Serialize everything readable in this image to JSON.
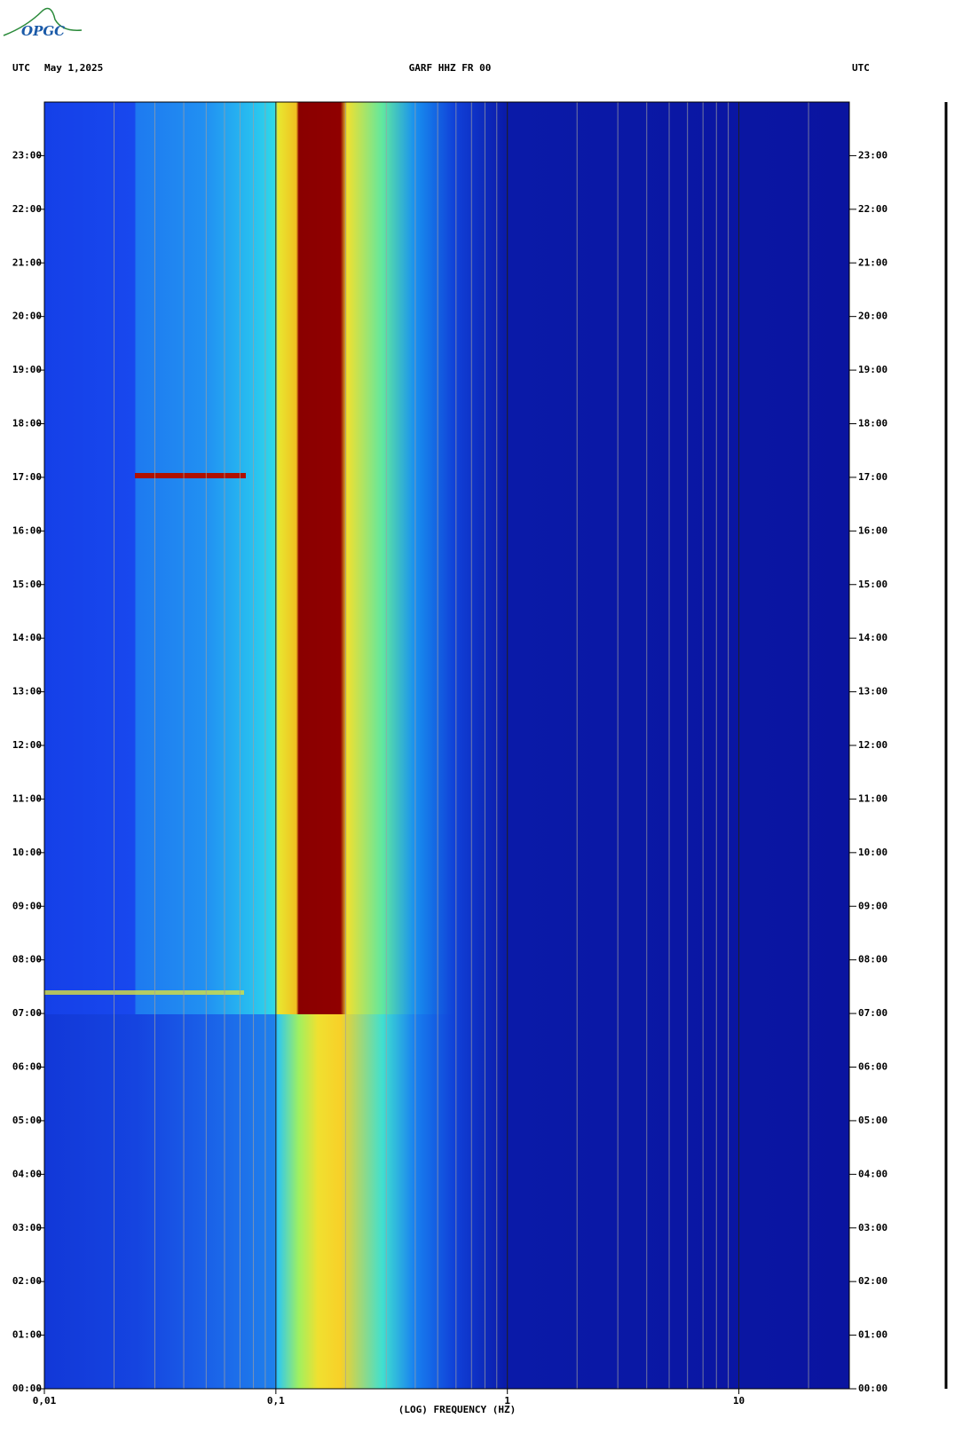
{
  "logo": "OPGC",
  "chart_data": {
    "type": "spectrogram",
    "title": "GARF HHZ FR 00",
    "time_zone": "UTC",
    "date": "May 1,2025",
    "xlabel": "(LOG) FREQUENCY (HZ)",
    "xscale": "log",
    "x_minor_grid": true,
    "xlim": [
      0.01,
      30
    ],
    "xticks": [
      {
        "value": 0.01,
        "label": "0,01"
      },
      {
        "value": 0.1,
        "label": "0,1"
      },
      1,
      10
    ],
    "ylim": [
      0,
      24
    ],
    "yticks": [
      {
        "value": 0,
        "label": "00:00"
      },
      {
        "value": 1,
        "label": "01:00"
      },
      {
        "value": 2,
        "label": "02:00"
      },
      {
        "value": 3,
        "label": "03:00"
      },
      {
        "value": 4,
        "label": "04:00"
      },
      {
        "value": 5,
        "label": "05:00"
      },
      {
        "value": 6,
        "label": "06:00"
      },
      {
        "value": 7,
        "label": "07:00"
      },
      {
        "value": 8,
        "label": "08:00"
      },
      {
        "value": 9,
        "label": "09:00"
      },
      {
        "value": 10,
        "label": "10:00"
      },
      {
        "value": 11,
        "label": "11:00"
      },
      {
        "value": 12,
        "label": "12:00"
      },
      {
        "value": 13,
        "label": "13:00"
      },
      {
        "value": 14,
        "label": "14:00"
      },
      {
        "value": 15,
        "label": "15:00"
      },
      {
        "value": 16,
        "label": "16:00"
      },
      {
        "value": 17,
        "label": "17:00"
      },
      {
        "value": 18,
        "label": "18:00"
      },
      {
        "value": 19,
        "label": "19:00"
      },
      {
        "value": 20,
        "label": "20:00"
      },
      {
        "value": 21,
        "label": "21:00"
      },
      {
        "value": 22,
        "label": "22:00"
      },
      {
        "value": 23,
        "label": "23:00"
      }
    ]
  }
}
